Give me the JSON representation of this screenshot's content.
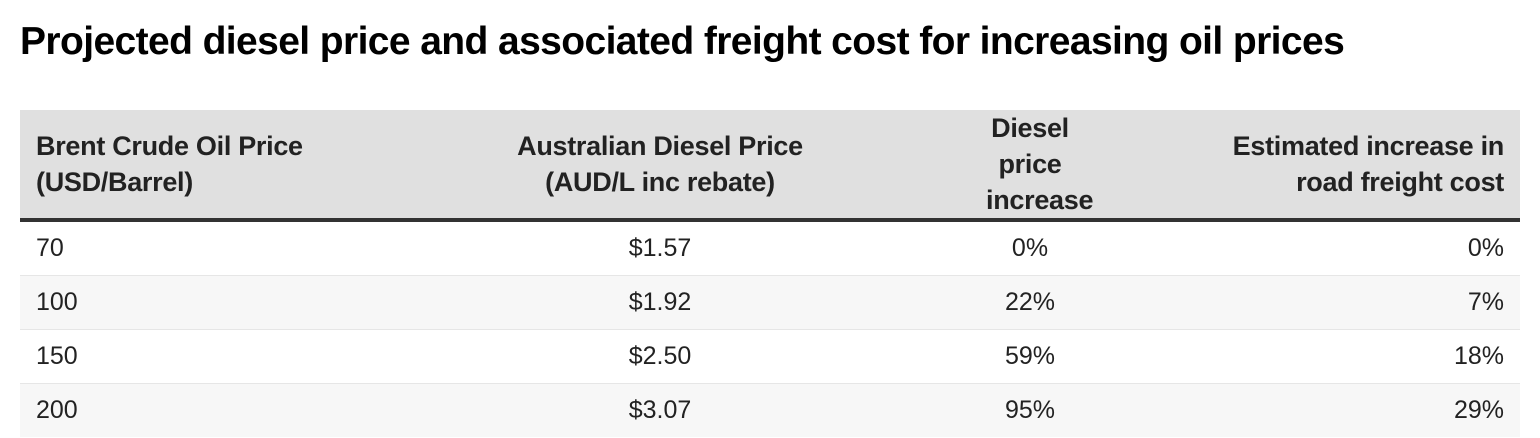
{
  "title": "Projected diesel price and associated freight cost for increasing oil prices",
  "table": {
    "headers": [
      {
        "line1": "Brent Crude Oil Price",
        "line2": "(USD/Barrel)"
      },
      {
        "line1": "Australian Diesel Price",
        "line2": "(AUD/L inc rebate)"
      },
      {
        "line1": "Diesel price",
        "line2": "increase"
      },
      {
        "line1": "Estimated increase in",
        "line2": "road freight cost"
      }
    ],
    "rows": [
      [
        "70",
        "$1.57",
        "0%",
        "0%"
      ],
      [
        "100",
        "$1.92",
        "22%",
        "7%"
      ],
      [
        "150",
        "$2.50",
        "59%",
        "18%"
      ],
      [
        "200",
        "$3.07",
        "95%",
        "29%"
      ]
    ]
  },
  "colors": {
    "header_bg": "#e0e0e0",
    "header_border": "#333333",
    "row_alt_bg": "#f7f7f7",
    "row_separator": "#e6e6e6"
  },
  "chart_data": {
    "type": "table",
    "title": "Projected diesel price and associated freight cost for increasing oil prices",
    "columns": [
      "Brent Crude Oil Price (USD/Barrel)",
      "Australian Diesel Price (AUD/L inc rebate)",
      "Diesel price increase",
      "Estimated increase in road freight cost"
    ],
    "rows": [
      [
        70,
        1.57,
        0,
        0
      ],
      [
        100,
        1.92,
        22,
        7
      ],
      [
        150,
        2.5,
        59,
        18
      ],
      [
        200,
        3.07,
        95,
        29
      ]
    ],
    "units": [
      "USD/barrel",
      "AUD/L",
      "%",
      "%"
    ]
  }
}
